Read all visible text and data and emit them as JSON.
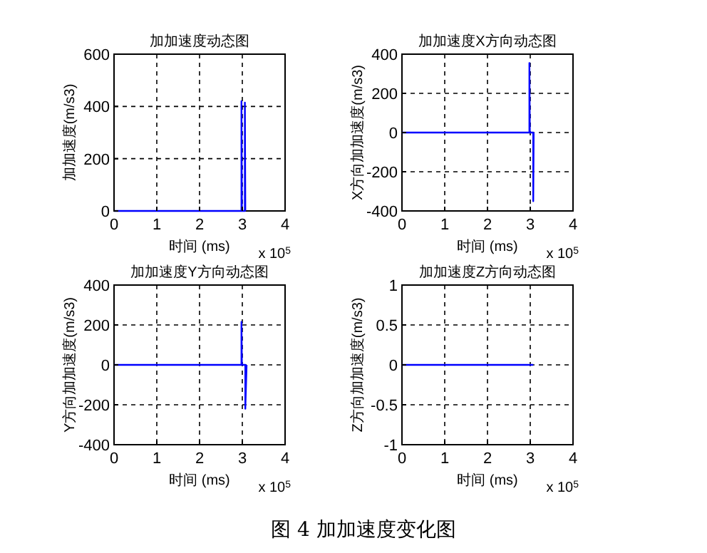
{
  "chart_data": [
    {
      "type": "line",
      "title": "加加速度动态图",
      "xlabel": "时间 (ms)",
      "ylabel": "加加速度(m/s3)",
      "x": [
        0,
        2.98,
        2.98,
        2.99,
        3.06,
        3.06,
        3.07
      ],
      "series": [
        {
          "color": "#0000ff",
          "values": [
            0,
            0,
            420,
            0,
            0,
            415,
            0
          ]
        }
      ],
      "xlim": [
        0,
        4
      ],
      "xticks": [
        0,
        1,
        2,
        3,
        4
      ],
      "ylim": [
        0,
        600
      ],
      "yticks": [
        0,
        200,
        400,
        600
      ],
      "grid": true,
      "annotations": [
        "x 10$^{5}$"
      ]
    },
    {
      "type": "line",
      "title": "加加速度X方向动态图",
      "xlabel": "时间 (ms)",
      "ylabel": "X方向加加速度(m/s3)",
      "x": [
        0,
        2.98,
        2.98,
        2.99,
        3.06,
        3.07,
        3.07,
        3.08
      ],
      "series": [
        {
          "color": "#0000ff",
          "values": [
            0,
            0,
            355,
            0,
            0,
            0,
            -350,
            0
          ]
        }
      ],
      "xlim": [
        0,
        4
      ],
      "xticks": [
        0,
        1,
        2,
        3,
        4
      ],
      "ylim": [
        -400,
        400
      ],
      "yticks": [
        -400,
        -200,
        0,
        200,
        400
      ],
      "grid": true,
      "annotations": [
        "x 10$^{5}$"
      ]
    },
    {
      "type": "line",
      "title": "加加速度Y方向动态图",
      "xlabel": "时间 (ms)",
      "ylabel": "Y方向加加速度(m/s3)",
      "x": [
        0,
        2.98,
        2.98,
        2.99,
        3.06,
        3.07,
        3.07,
        3.1
      ],
      "series": [
        {
          "color": "#0000ff",
          "values": [
            0,
            0,
            215,
            0,
            0,
            0,
            -220,
            0
          ]
        }
      ],
      "xlim": [
        0,
        4
      ],
      "xticks": [
        0,
        1,
        2,
        3,
        4
      ],
      "ylim": [
        -400,
        400
      ],
      "yticks": [
        -400,
        -200,
        0,
        200,
        400
      ],
      "grid": true,
      "annotations": [
        "x 10$^{5}$"
      ]
    },
    {
      "type": "line",
      "title": "加加速度Z方向动态图",
      "xlabel": "时间 (ms)",
      "ylabel": "Z方向加加速度(m/s3)",
      "x": [
        0,
        3.07
      ],
      "series": [
        {
          "color": "#0000ff",
          "values": [
            0,
            0
          ]
        }
      ],
      "xlim": [
        0,
        4
      ],
      "xticks": [
        0,
        1,
        2,
        3,
        4
      ],
      "ylim": [
        -1,
        1
      ],
      "yticks": [
        -1,
        -0.5,
        0,
        0.5,
        1
      ],
      "grid": true,
      "annotations": [
        "x 10$^{5}$",
        "图 4 加加速度变化图"
      ]
    }
  ]
}
